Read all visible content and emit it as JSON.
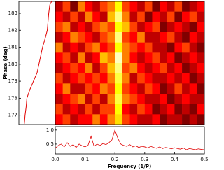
{
  "chart_data": [
    {
      "type": "line",
      "orientation": "vertical",
      "ylabel": "Phase (deg)",
      "y": [
        176.5,
        177,
        177.5,
        178,
        178.5,
        179,
        179.5,
        180,
        180.5,
        181,
        181.5,
        182,
        182.5,
        183,
        183.5,
        183.7
      ],
      "x": [
        0.15,
        0.17,
        0.2,
        0.22,
        0.3,
        0.4,
        0.5,
        0.55,
        0.6,
        0.65,
        0.72,
        0.78,
        0.8,
        0.82,
        0.85,
        0.9
      ],
      "color": "#e00000",
      "xlim": [
        0,
        1
      ],
      "ylim": [
        176.45,
        183.7
      ],
      "yticks": [
        177,
        178,
        179,
        180,
        181,
        182,
        183
      ]
    },
    {
      "type": "heatmap",
      "cmap": "hot",
      "xlim": [
        0,
        0.5
      ],
      "ylim": [
        176.45,
        183.7
      ],
      "zlim": [
        0,
        1
      ],
      "z": [
        [
          0.3,
          0.5,
          0.2,
          0.6,
          0.4,
          0.3,
          0.5,
          0.6,
          0.8,
          0.5,
          0.4,
          0.3,
          0.5,
          0.2,
          0.4,
          0.3,
          0.5,
          0.2,
          0.3,
          0.4
        ],
        [
          0.4,
          0.3,
          0.5,
          0.3,
          0.6,
          0.4,
          0.3,
          0.7,
          0.9,
          0.6,
          0.3,
          0.5,
          0.2,
          0.4,
          0.3,
          0.5,
          0.2,
          0.4,
          0.5,
          0.3
        ],
        [
          0.5,
          0.6,
          0.3,
          0.4,
          0.3,
          0.5,
          0.6,
          0.5,
          0.8,
          0.7,
          0.5,
          0.3,
          0.4,
          0.5,
          0.2,
          0.3,
          0.4,
          0.3,
          0.2,
          0.4
        ],
        [
          0.3,
          0.4,
          0.6,
          0.5,
          0.4,
          0.3,
          0.5,
          0.6,
          0.9,
          0.5,
          0.4,
          0.6,
          0.3,
          0.3,
          0.4,
          0.5,
          0.3,
          0.2,
          0.4,
          0.3
        ],
        [
          0.6,
          0.3,
          0.4,
          0.3,
          0.5,
          0.6,
          0.4,
          0.5,
          0.8,
          0.6,
          0.5,
          0.4,
          0.5,
          0.3,
          0.3,
          0.2,
          0.4,
          0.5,
          0.3,
          0.2
        ],
        [
          0.4,
          0.5,
          0.3,
          0.6,
          0.3,
          0.4,
          0.7,
          0.6,
          0.95,
          0.6,
          0.4,
          0.3,
          0.4,
          0.5,
          0.3,
          0.4,
          0.2,
          0.3,
          0.4,
          0.3
        ],
        [
          0.3,
          0.4,
          0.5,
          0.4,
          0.6,
          0.3,
          0.5,
          0.7,
          0.9,
          0.5,
          0.6,
          0.4,
          0.3,
          0.4,
          0.5,
          0.3,
          0.4,
          0.2,
          0.3,
          0.4
        ],
        [
          0.5,
          0.3,
          0.4,
          0.5,
          0.4,
          0.5,
          0.4,
          0.6,
          0.85,
          0.6,
          0.3,
          0.5,
          0.4,
          0.3,
          0.3,
          0.4,
          0.3,
          0.4,
          0.2,
          0.3
        ],
        [
          0.4,
          0.6,
          0.3,
          0.3,
          0.5,
          0.4,
          0.6,
          0.5,
          0.8,
          0.5,
          0.4,
          0.3,
          0.5,
          0.4,
          0.2,
          0.3,
          0.5,
          0.3,
          0.4,
          0.2
        ],
        [
          0.3,
          0.4,
          0.5,
          0.6,
          0.3,
          0.5,
          0.3,
          0.6,
          0.85,
          0.6,
          0.5,
          0.4,
          0.3,
          0.3,
          0.4,
          0.2,
          0.3,
          0.4,
          0.3,
          0.3
        ],
        [
          0.5,
          0.3,
          0.4,
          0.3,
          0.5,
          0.3,
          0.5,
          0.5,
          0.8,
          0.4,
          0.3,
          0.5,
          0.4,
          0.2,
          0.3,
          0.4,
          0.2,
          0.3,
          0.2,
          0.4
        ],
        [
          0.4,
          0.5,
          0.3,
          0.4,
          0.4,
          0.6,
          0.4,
          0.6,
          0.75,
          0.5,
          0.4,
          0.3,
          0.3,
          0.4,
          0.2,
          0.3,
          0.3,
          0.2,
          0.3,
          0.2
        ]
      ]
    },
    {
      "type": "line",
      "xlabel": "Frequency (1/P)",
      "color": "#e00000",
      "x": [
        0,
        0.01,
        0.02,
        0.03,
        0.04,
        0.05,
        0.06,
        0.07,
        0.08,
        0.09,
        0.1,
        0.11,
        0.12,
        0.13,
        0.14,
        0.15,
        0.16,
        0.17,
        0.18,
        0.19,
        0.2,
        0.21,
        0.22,
        0.23,
        0.24,
        0.25,
        0.26,
        0.27,
        0.28,
        0.29,
        0.3,
        0.31,
        0.32,
        0.33,
        0.34,
        0.35,
        0.36,
        0.37,
        0.38,
        0.39,
        0.4,
        0.41,
        0.42,
        0.43,
        0.44,
        0.45,
        0.46,
        0.47,
        0.48,
        0.49,
        0.5
      ],
      "values": [
        0.35,
        0.45,
        0.5,
        0.4,
        0.55,
        0.42,
        0.48,
        0.38,
        0.5,
        0.44,
        0.4,
        0.46,
        0.78,
        0.42,
        0.5,
        0.45,
        0.52,
        0.48,
        0.55,
        0.65,
        1.0,
        0.7,
        0.5,
        0.45,
        0.42,
        0.48,
        0.4,
        0.44,
        0.38,
        0.42,
        0.4,
        0.36,
        0.42,
        0.38,
        0.35,
        0.4,
        0.34,
        0.38,
        0.36,
        0.33,
        0.37,
        0.34,
        0.32,
        0.36,
        0.3,
        0.34,
        0.32,
        0.3,
        0.33,
        0.31,
        0.3
      ],
      "xlim": [
        0,
        0.5
      ],
      "ylim": [
        0.15,
        1.12
      ],
      "xticks": [
        {
          "value": 0,
          "label": "0.0"
        },
        0.1,
        0.2,
        0.3,
        0.4,
        0.5
      ],
      "yticks": [
        0.5,
        {
          "value": 1,
          "label": "1.0"
        }
      ]
    }
  ]
}
